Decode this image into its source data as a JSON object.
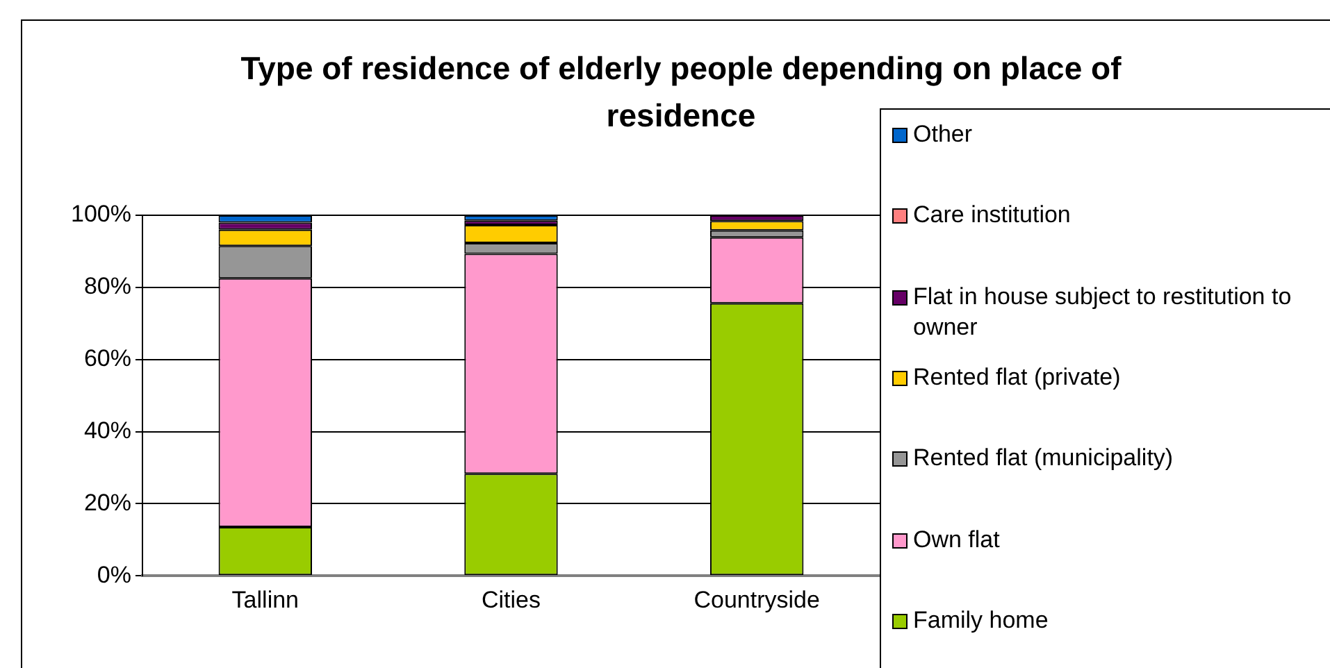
{
  "chart_data": {
    "type": "bar",
    "title": "Type of residence of elderly people depending on place of residence",
    "categories": [
      "Tallinn",
      "Cities",
      "Countryside"
    ],
    "stacked": true,
    "ylim": [
      0,
      100
    ],
    "yticks": [
      {
        "value": 0,
        "label": "0%"
      },
      {
        "value": 20,
        "label": "20%"
      },
      {
        "value": 40,
        "label": "40%"
      },
      {
        "value": 60,
        "label": "60%"
      },
      {
        "value": 80,
        "label": "80%"
      },
      {
        "value": 100,
        "label": "100%"
      }
    ],
    "grid": "y",
    "legend": "right",
    "series": [
      {
        "name": "Family home",
        "color": "#99cc00",
        "values": [
          13.5,
          28.3,
          75.6
        ]
      },
      {
        "name": "Own flat",
        "color": "#ff99cc",
        "values": [
          69,
          61,
          18.3
        ]
      },
      {
        "name": "Rented flat (municipality)",
        "color": "#969696",
        "values": [
          9,
          3,
          1.9
        ]
      },
      {
        "name": "Rented flat (private)",
        "color": "#ffcc00",
        "values": [
          4.5,
          5,
          2.6
        ]
      },
      {
        "name": "Flat in house subject to restitution to owner",
        "color": "#660066",
        "values": [
          2,
          1.2,
          1.6
        ]
      },
      {
        "name": "Care institution",
        "color": "#ff8080",
        "values": [
          null,
          null,
          null
        ]
      },
      {
        "name": "Other",
        "color": "#0066cc",
        "values": [
          2,
          1.5,
          null
        ]
      }
    ]
  }
}
